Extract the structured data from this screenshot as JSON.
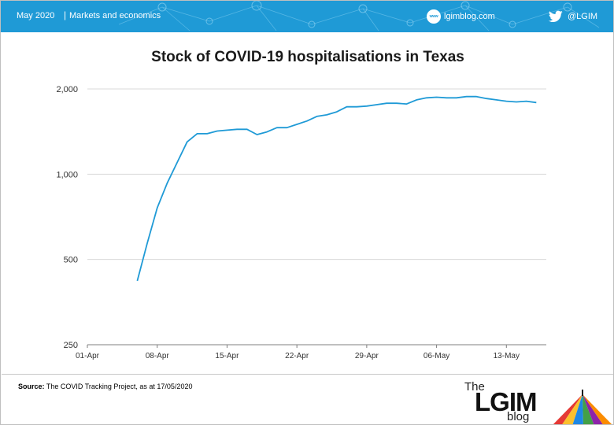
{
  "header": {
    "date": "May 2020",
    "separator": "|",
    "category": "Markets and economics",
    "www_icon_text": "www",
    "website": "lgimblog.com",
    "twitter": "@LGIM",
    "icons": [
      "www-icon",
      "twitter-icon"
    ],
    "color": "#1f9ad6"
  },
  "footer": {
    "source_label": "Source:",
    "source_text": "The COVID Tracking Project, as at 17/05/2020",
    "logo": {
      "the": "The",
      "brand": "LGIM",
      "blog": "blog"
    }
  },
  "chart_data": {
    "type": "line",
    "title": "Stock of COVID-19 hospitalisations in Texas",
    "xlabel": "",
    "ylabel": "",
    "y_scale": "log",
    "ylim": [
      250,
      2000
    ],
    "y_ticks": [
      250,
      500,
      1000,
      2000
    ],
    "y_tick_labels": [
      "250",
      "500",
      "1,000",
      "2,000"
    ],
    "xlim": [
      "2020-04-01",
      "2020-05-17"
    ],
    "x_ticks": [
      "2020-04-01",
      "2020-04-08",
      "2020-04-15",
      "2020-04-22",
      "2020-04-29",
      "2020-05-06",
      "2020-05-13"
    ],
    "x_tick_labels": [
      "01-Apr",
      "08-Apr",
      "15-Apr",
      "22-Apr",
      "29-Apr",
      "06-May",
      "13-May"
    ],
    "grid": "horizontal",
    "legend": "none",
    "line_color": "#1f9ad6",
    "series": [
      {
        "x": [
          "2020-04-06",
          "2020-04-07",
          "2020-04-08",
          "2020-04-09",
          "2020-04-10",
          "2020-04-11",
          "2020-04-12",
          "2020-04-13",
          "2020-04-14",
          "2020-04-15",
          "2020-04-16",
          "2020-04-17",
          "2020-04-18",
          "2020-04-19",
          "2020-04-20",
          "2020-04-21",
          "2020-04-22",
          "2020-04-23",
          "2020-04-24",
          "2020-04-25",
          "2020-04-26",
          "2020-04-27",
          "2020-04-28",
          "2020-04-29",
          "2020-04-30",
          "2020-05-01",
          "2020-05-02",
          "2020-05-03",
          "2020-05-04",
          "2020-05-05",
          "2020-05-06",
          "2020-05-07",
          "2020-05-08",
          "2020-05-09",
          "2020-05-10",
          "2020-05-11",
          "2020-05-12",
          "2020-05-13",
          "2020-05-14",
          "2020-05-15",
          "2020-05-16",
          "2020-05-17"
        ],
        "values": [
          420,
          570,
          760,
          930,
          1100,
          1300,
          1390,
          1390,
          1420,
          1430,
          1440,
          1440,
          1380,
          1410,
          1460,
          1460,
          1500,
          1540,
          1600,
          1620,
          1660,
          1730,
          1730,
          1740,
          1760,
          1780,
          1780,
          1770,
          1830,
          1860,
          1870,
          1860,
          1860,
          1880,
          1880,
          1850,
          1830,
          1810,
          1800,
          1810,
          1790,
          null
        ]
      }
    ]
  }
}
